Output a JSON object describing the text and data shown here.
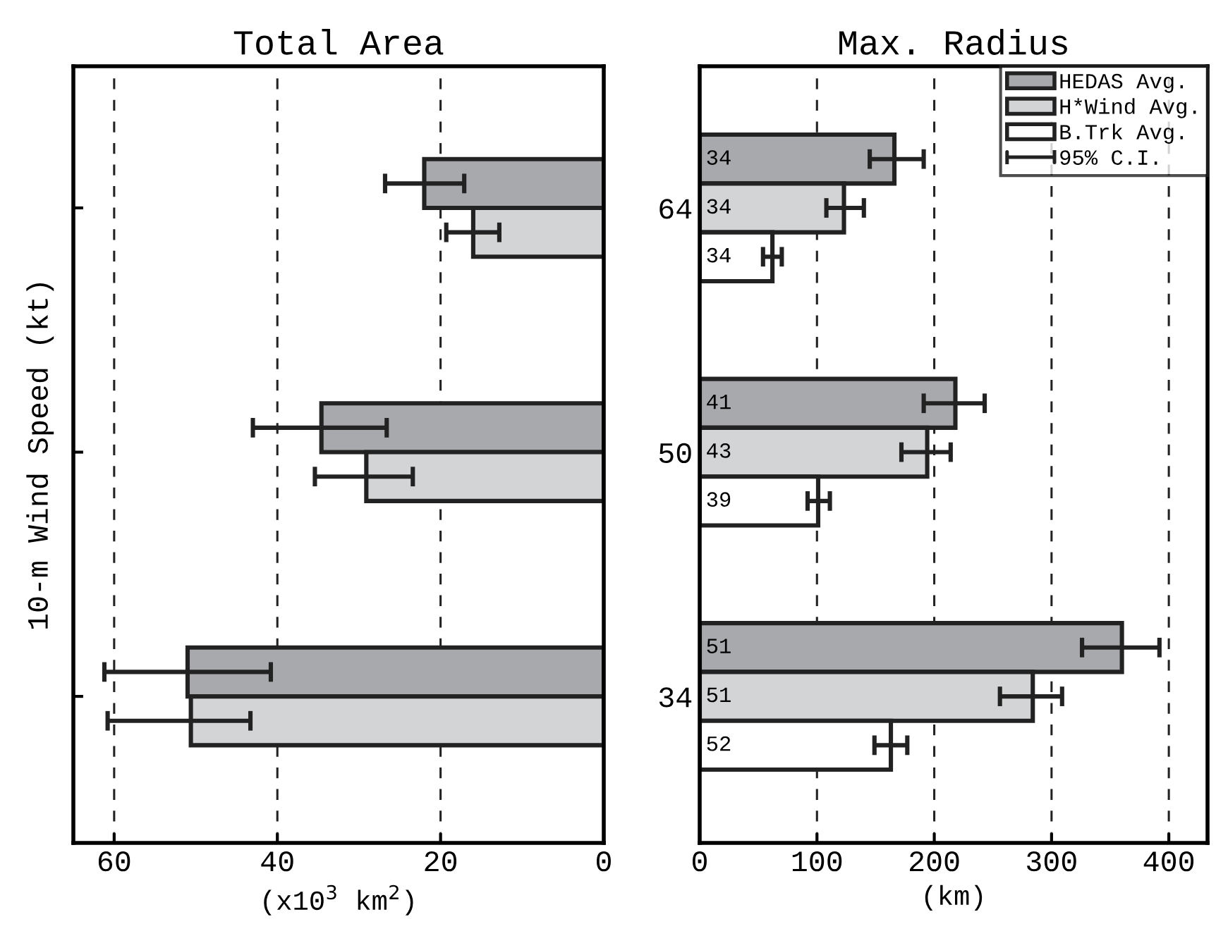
{
  "chart_data": [
    {
      "type": "bar",
      "orientation": "horizontal",
      "title": "Total Area",
      "xlabel": "(x10$^{3}$ km$^{2}$)",
      "ylabel": "10-m Wind Speed (kt)",
      "categories": [
        null,
        null,
        null
      ],
      "xlim": [
        65,
        0
      ],
      "xticks": [
        60,
        40,
        20,
        0
      ],
      "grid": "x",
      "tick_labels": "x",
      "series": [
        {
          "color": "#a8a9ac",
          "values": [
            22.0,
            34.6,
            51.0
          ],
          "errors": [
            [
              17.1,
              26.8
            ],
            [
              26.6,
              43.0
            ],
            [
              40.8,
              61.2
            ]
          ]
        },
        {
          "color": "#d3d4d6",
          "values": [
            16.0,
            29.1,
            50.6
          ],
          "errors": [
            [
              12.8,
              19.3
            ],
            [
              23.4,
              35.4
            ],
            [
              43.3,
              60.8
            ]
          ]
        }
      ]
    },
    {
      "type": "bar",
      "orientation": "horizontal",
      "title": "Max. Radius",
      "xlabel": "(km)",
      "categories": [
        "64",
        "50",
        "34"
      ],
      "xlim": [
        0,
        433
      ],
      "xticks": [
        0,
        100,
        200,
        300,
        400
      ],
      "grid": "x",
      "legend": "top right",
      "annotations": [
        "95% C.I.",
        "34",
        "34",
        "34",
        "41",
        "43",
        "39",
        "51",
        "51",
        "52"
      ],
      "series": [
        {
          "name": "HEDAS Avg.",
          "color": "#a8a9ac",
          "values": [
            166,
            218,
            360
          ],
          "errors": [
            [
              145,
              191
            ],
            [
              191,
              243
            ],
            [
              326,
              392
            ]
          ]
        },
        {
          "name": "H*Wind Avg.",
          "color": "#d3d4d6",
          "values": [
            123,
            194,
            284
          ],
          "errors": [
            [
              108,
              140
            ],
            [
              172,
              214
            ],
            [
              256,
              309
            ]
          ]
        },
        {
          "name": "B.Trk Avg.",
          "color": "#ffffff",
          "values": [
            62,
            101,
            163
          ],
          "errors": [
            [
              54,
              70
            ],
            [
              92,
              111
            ],
            [
              149,
              177
            ]
          ]
        }
      ]
    }
  ]
}
